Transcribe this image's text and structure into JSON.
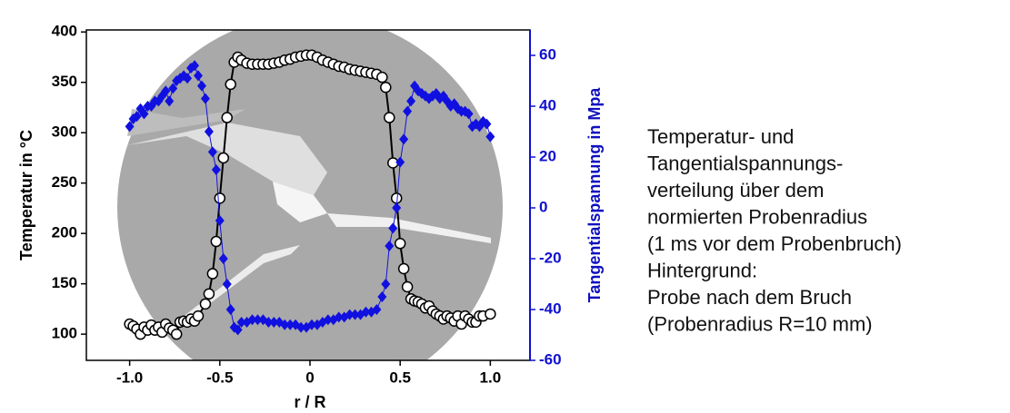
{
  "chart_data": {
    "type": "line",
    "xlabel": "r / R",
    "ylabel": "Temperatur in °C",
    "y2label": "Tangentialspannung in Mpa",
    "xlim": [
      -1.24,
      1.22
    ],
    "ylim": [
      74,
      402
    ],
    "y2lim": [
      -60,
      70
    ],
    "xticks": [
      {
        "value": -1.0,
        "label": "-1.0"
      },
      -0.5,
      0,
      0.5,
      {
        "value": 1.0,
        "label": "1.0"
      }
    ],
    "yticks": [
      100,
      150,
      200,
      250,
      300,
      350,
      400
    ],
    "y2ticks": [
      -60,
      -40,
      -20,
      0,
      20,
      40,
      60
    ],
    "series": [
      {
        "color": "#000000",
        "x": [
          -1.0,
          -0.98,
          -0.96,
          -0.94,
          -0.92,
          -0.9,
          -0.88,
          -0.86,
          -0.84,
          -0.82,
          -0.8,
          -0.78,
          -0.76,
          -0.74,
          -0.72,
          -0.7,
          -0.68,
          -0.66,
          -0.64,
          -0.62,
          -0.58,
          -0.56,
          -0.54,
          -0.52,
          -0.5,
          -0.48,
          -0.46,
          -0.44,
          -0.42,
          -0.4,
          -0.38,
          -0.35,
          -0.32,
          -0.29,
          -0.26,
          -0.23,
          -0.2,
          -0.17,
          -0.14,
          -0.11,
          -0.08,
          -0.05,
          -0.02,
          0.01,
          0.04,
          0.07,
          0.1,
          0.13,
          0.16,
          0.19,
          0.22,
          0.25,
          0.28,
          0.31,
          0.34,
          0.37,
          0.4,
          0.42,
          0.44,
          0.46,
          0.48,
          0.5,
          0.52,
          0.54,
          0.56,
          0.58,
          0.6,
          0.62,
          0.64,
          0.66,
          0.68,
          0.7,
          0.72,
          0.74,
          0.76,
          0.78,
          0.8,
          0.82,
          0.84,
          0.86,
          0.88,
          0.9,
          0.92,
          0.94,
          0.96,
          1.0
        ],
        "values": [
          110,
          108,
          105,
          100,
          107,
          104,
          109,
          104,
          107,
          102,
          110,
          106,
          104,
          100,
          112,
          113,
          112,
          115,
          113,
          118,
          130,
          140,
          160,
          192,
          235,
          275,
          315,
          348,
          370,
          375,
          372,
          369,
          368,
          368,
          368,
          368,
          369,
          370,
          372,
          373,
          375,
          376,
          377,
          377,
          375,
          372,
          370,
          368,
          366,
          365,
          363,
          362,
          361,
          360,
          359,
          358,
          355,
          345,
          315,
          270,
          235,
          190,
          165,
          147,
          135,
          133,
          132,
          130,
          126,
          128,
          123,
          120,
          118,
          115,
          118,
          116,
          113,
          118,
          110,
          118,
          115,
          112,
          112,
          118,
          118,
          120
        ]
      },
      {
        "color": "#1010e0",
        "axis": "y2",
        "x": [
          -1.0,
          -0.98,
          -0.96,
          -0.94,
          -0.92,
          -0.9,
          -0.88,
          -0.86,
          -0.84,
          -0.82,
          -0.8,
          -0.78,
          -0.76,
          -0.74,
          -0.72,
          -0.7,
          -0.68,
          -0.66,
          -0.64,
          -0.62,
          -0.6,
          -0.58,
          -0.56,
          -0.54,
          -0.52,
          -0.5,
          -0.48,
          -0.46,
          -0.44,
          -0.42,
          -0.4,
          -0.38,
          -0.35,
          -0.32,
          -0.29,
          -0.26,
          -0.23,
          -0.2,
          -0.17,
          -0.14,
          -0.11,
          -0.08,
          -0.05,
          -0.02,
          0.01,
          0.04,
          0.07,
          0.1,
          0.13,
          0.16,
          0.19,
          0.22,
          0.25,
          0.28,
          0.31,
          0.34,
          0.37,
          0.4,
          0.42,
          0.44,
          0.46,
          0.48,
          0.5,
          0.52,
          0.54,
          0.56,
          0.58,
          0.6,
          0.62,
          0.64,
          0.66,
          0.68,
          0.7,
          0.72,
          0.74,
          0.76,
          0.78,
          0.8,
          0.82,
          0.84,
          0.86,
          0.88,
          0.9,
          0.92,
          0.94,
          0.96,
          0.98,
          1.0
        ],
        "values": [
          32,
          35,
          36,
          39,
          37,
          40,
          40,
          42,
          42,
          44,
          46,
          42,
          47,
          50,
          51,
          52,
          51,
          55,
          56,
          52,
          48,
          43,
          30,
          22,
          15,
          -5,
          -20,
          -30,
          -40,
          -47,
          -48,
          -45,
          -45,
          -44,
          -44,
          -44,
          -45,
          -45,
          -45,
          -46,
          -46,
          -46,
          -47,
          -47,
          -46,
          -46,
          -45,
          -44,
          -44,
          -43,
          -43,
          -42,
          -42,
          -42,
          -41,
          -41,
          -40,
          -35,
          -30,
          -15,
          -8,
          0,
          18,
          27,
          38,
          42,
          48,
          46,
          45,
          44,
          43,
          44,
          45,
          43,
          44,
          42,
          40,
          41,
          39,
          38,
          38,
          37,
          32,
          33,
          32,
          34,
          33,
          28
        ]
      }
    ]
  },
  "annotation": [
    "Temperatur- und",
    "Tangentialspannungs-",
    "verteilung über dem",
    "normierten Probenradius",
    "(1 ms vor dem Probenbruch)",
    "Hintergrund:",
    "Probe nach dem Bruch",
    "(Probenradius R=10 mm)"
  ]
}
